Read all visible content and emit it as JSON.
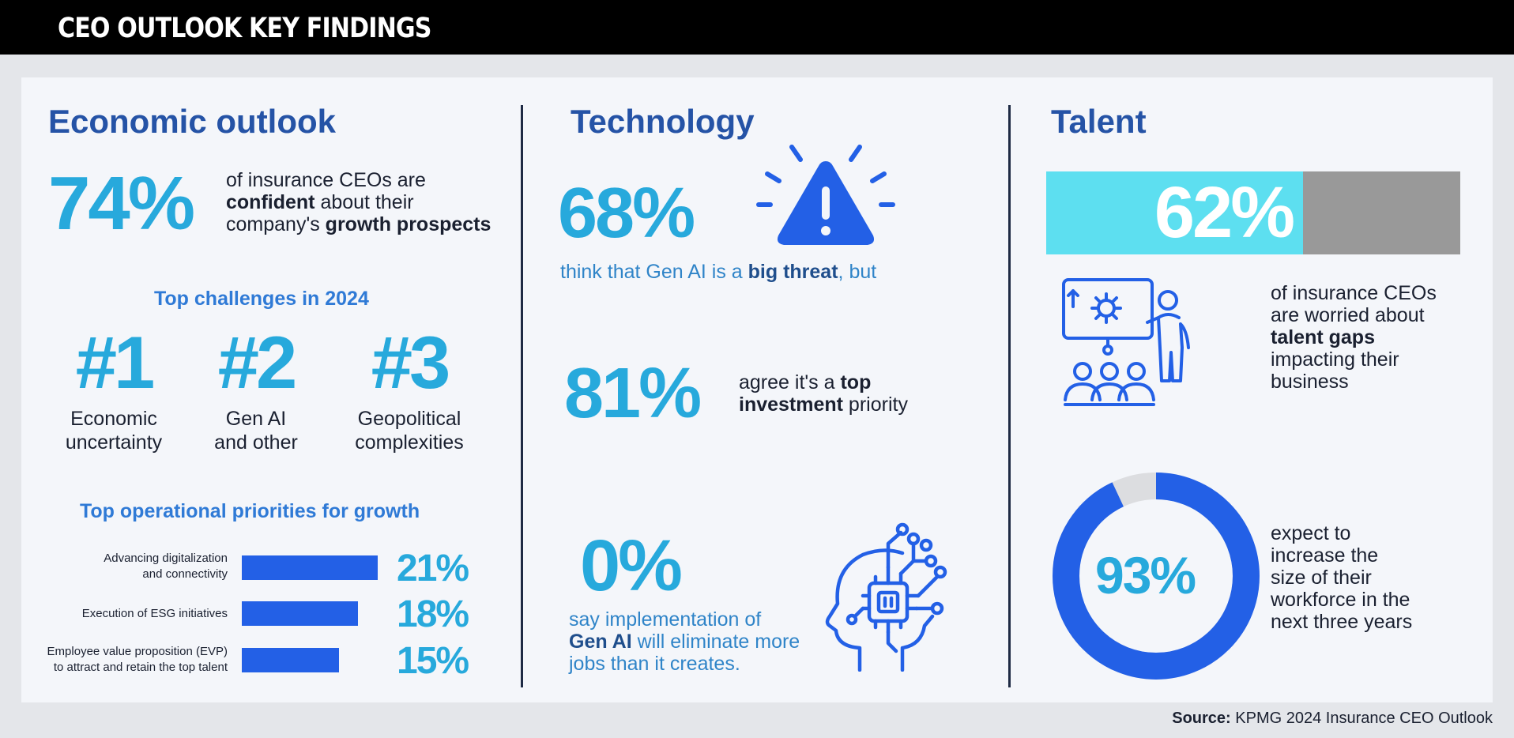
{
  "header": {
    "title": "CEO OUTLOOK KEY FINDINGS"
  },
  "economic": {
    "heading": "Economic outlook",
    "stat": "74%",
    "stat_line1": "of insurance CEOs are",
    "stat_line2_bold": "confident",
    "stat_line2_rest": " about their",
    "stat_line3_pre": "company's ",
    "stat_line3_bold": "growth prospects",
    "challenges_heading": "Top challenges in 2024",
    "challenges": [
      {
        "rank": "#1",
        "line1": "Economic",
        "line2": "uncertainty"
      },
      {
        "rank": "#2",
        "line1": "Gen AI",
        "line2": "and other"
      },
      {
        "rank": "#3",
        "line1": "Geopolitical",
        "line2": "complexities"
      }
    ],
    "priorities_heading": "Top operational priorities for growth",
    "priorities": [
      {
        "line1": "Advancing digitalization",
        "line2": "and connectivity",
        "value": "21%",
        "percent": 21
      },
      {
        "line1": "Execution of ESG initiatives",
        "line2": "",
        "value": "18%",
        "percent": 18
      },
      {
        "line1": "Employee value proposition (EVP)",
        "line2": "to attract and retain the top talent",
        "value": "15%",
        "percent": 15
      }
    ]
  },
  "technology": {
    "heading": "Technology",
    "stat1": "68%",
    "stat1_pre": "think that Gen AI is a ",
    "stat1_bold": "big threat",
    "stat1_post": ", but",
    "stat2": "81%",
    "stat2_line1_pre": "agree it's a ",
    "stat2_line1_bold": "top",
    "stat2_line2_bold": "investment",
    "stat2_line2_rest": " priority",
    "stat3": "0%",
    "stat3_line1": "say implementation of",
    "stat3_line2_bold": "Gen AI",
    "stat3_line2_rest": " will eliminate more",
    "stat3_line3": "jobs than it creates.",
    "icons": {
      "warning": "warning-icon",
      "ai_head": "ai-head-icon"
    }
  },
  "talent": {
    "heading": "Talent",
    "stat1": "62%",
    "stat1_percent": 62,
    "stat1_line1": "of insurance CEOs",
    "stat1_line2": "are worried about",
    "stat1_line3_bold": "talent gaps",
    "stat1_line4": "impacting their",
    "stat1_line5": "business",
    "stat2": "93%",
    "stat2_percent": 93,
    "stat2_line1": "expect to",
    "stat2_line2": "increase the",
    "stat2_line3": "size of their",
    "stat2_line4": "workforce in the",
    "stat2_line5": "next three years",
    "icons": {
      "presentation": "presentation-audience-icon"
    }
  },
  "source": {
    "label": "Source:",
    "text": " KPMG 2024 Insurance CEO Outlook"
  },
  "colors": {
    "cyan": "#27a9dc",
    "blue": "#2360e6",
    "navy": "#2553a6",
    "light_cyan": "#5ddff0",
    "gray": "#999999"
  }
}
